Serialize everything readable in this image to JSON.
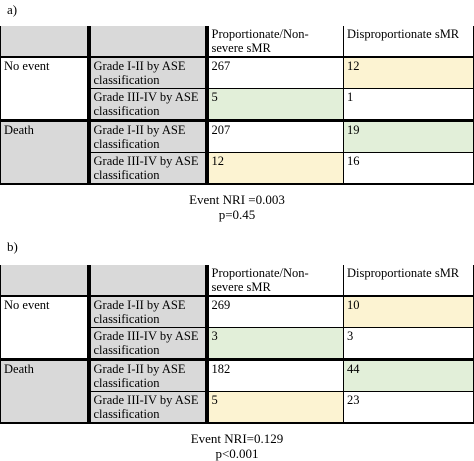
{
  "panels": [
    {
      "label": "a)",
      "header": [
        "",
        "",
        "Proportionate/Non-severe sMR",
        "Disproportionate sMR"
      ],
      "rows": [
        {
          "group": "No event",
          "grade": "Grade I-II by ASE classification",
          "prop": "267",
          "disprop": "12"
        },
        {
          "group": "",
          "grade": "Grade III-IV by ASE classification",
          "prop": "5",
          "disprop": "1"
        },
        {
          "group": "Death",
          "grade": "Grade I-II by ASE classification",
          "prop": "207",
          "disprop": "19"
        },
        {
          "group": "",
          "grade": "Grade III-IV by ASE classification",
          "prop": "12",
          "disprop": "16"
        }
      ],
      "nri": "Event NRI =0.003",
      "p": "p=0.45"
    },
    {
      "label": "b)",
      "header": [
        "",
        "",
        "Proportionate/Non-severe sMR",
        "Disproportionate sMR"
      ],
      "rows": [
        {
          "group": "No event",
          "grade": "Grade I-II by ASE classification",
          "prop": "269",
          "disprop": "10"
        },
        {
          "group": "",
          "grade": "Grade III-IV by ASE classification",
          "prop": "3",
          "disprop": "3"
        },
        {
          "group": "Death",
          "grade": "Grade I-II by ASE classification",
          "prop": "182",
          "disprop": "44"
        },
        {
          "group": "",
          "grade": "Grade III-IV by ASE classification",
          "prop": "5",
          "disprop": "23"
        }
      ],
      "nri": "Event NRI=0.129",
      "p": "p<0.001"
    }
  ],
  "colors": {
    "header_grey": "#d9d9d9",
    "green_cell": "#e2efd9",
    "yellow_cell": "#fcf3d2"
  }
}
